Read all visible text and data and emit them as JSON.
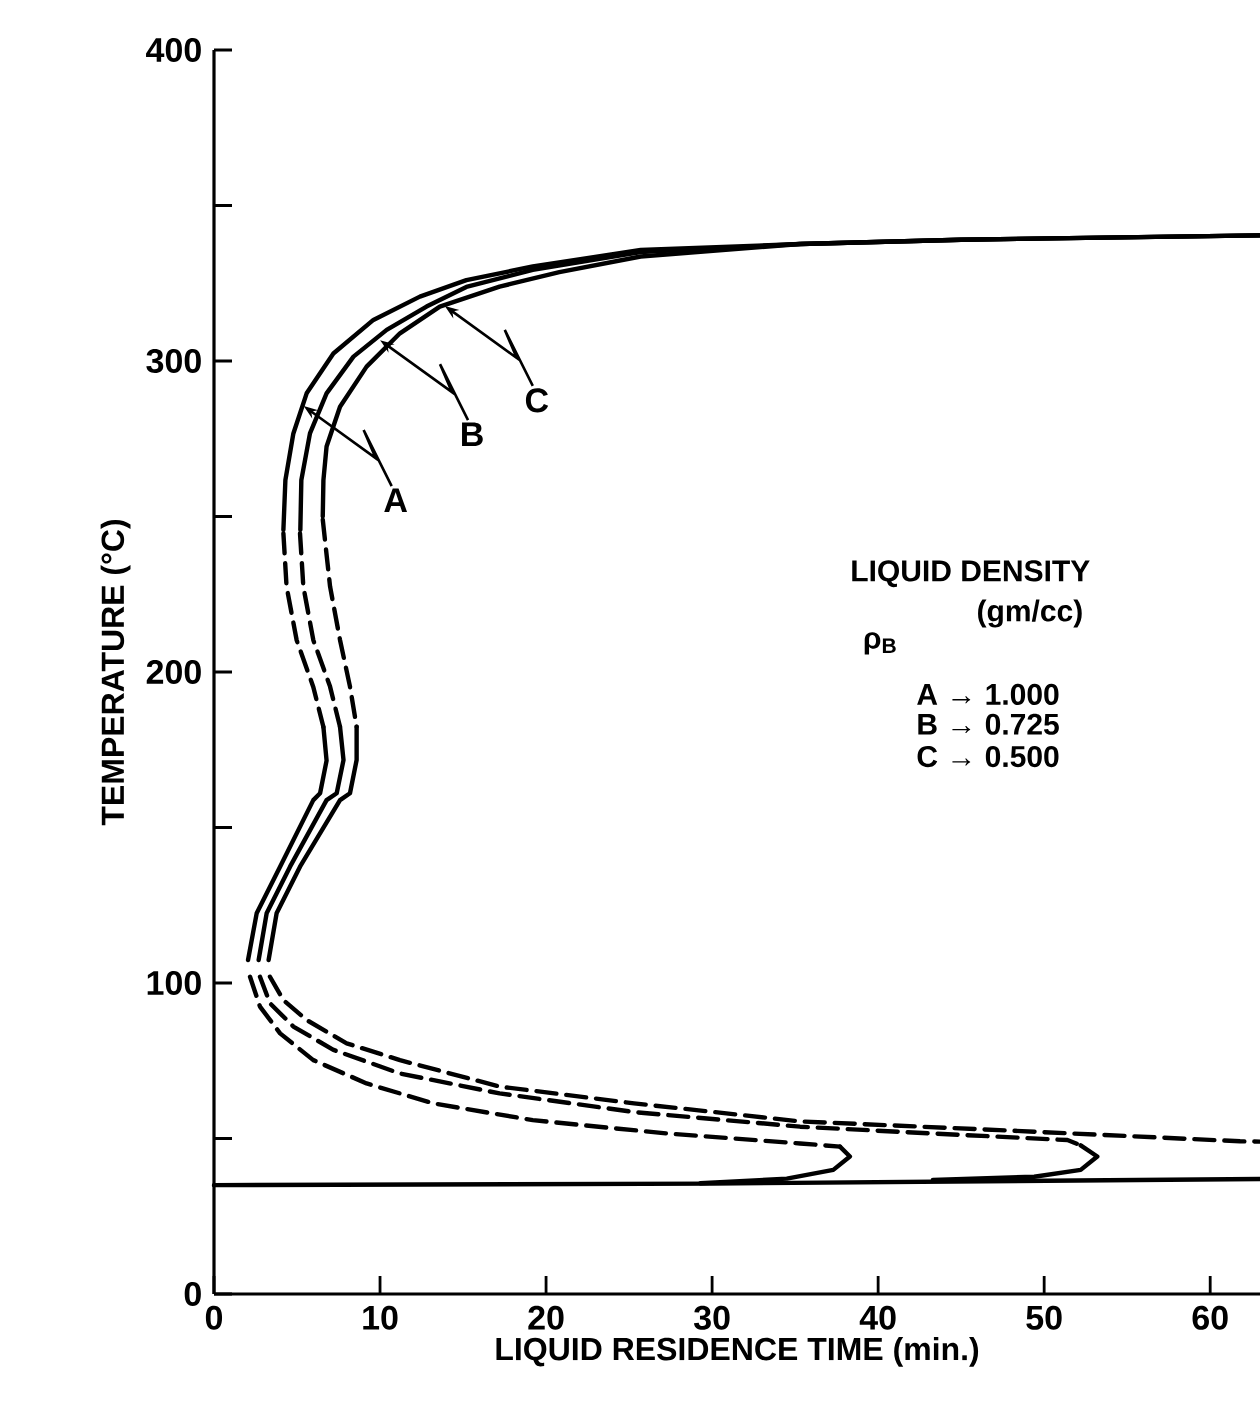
{
  "chart_data": {
    "type": "line",
    "xlabel": "LIQUID RESIDENCE TIME (min.)",
    "ylabel": "TEMPERATURE (°C)",
    "xlim": [
      0,
      63
    ],
    "ylim": [
      0,
      400
    ],
    "xticks": [
      0,
      10,
      20,
      30,
      40,
      50,
      60
    ],
    "yticks": [
      0,
      {
        "value": 50,
        "label": null
      },
      100,
      {
        "value": 150,
        "label": null
      },
      200,
      {
        "value": 250,
        "label": null
      },
      300,
      {
        "value": 350,
        "label": null
      },
      400
    ],
    "grid": false,
    "marker": "none",
    "series": [
      {
        "color": "#000000",
        "line_style": "solid",
        "x": [
          4.18,
          4.3,
          4.78,
          5.58,
          7.19,
          9.6,
          12.4,
          15.2,
          19.2,
          25.7,
          35.3,
          45,
          63
        ],
        "values": [
          245.7,
          261.7,
          276.7,
          289.6,
          302.4,
          313.2,
          320.7,
          326,
          330.4,
          335.7,
          337.6,
          339,
          340.4
        ]
      },
      {
        "color": "#000000",
        "line_style": "solid",
        "x": [
          5.2,
          5.26,
          5.78,
          6.78,
          8.4,
          10.4,
          12.8,
          15.2,
          19.2,
          25.7,
          35.3,
          45,
          63
        ],
        "values": [
          245.7,
          261.7,
          276.7,
          289.6,
          301.4,
          310,
          317.5,
          323.8,
          329.3,
          335,
          337.6,
          339,
          340.4
        ]
      },
      {
        "color": "#000000",
        "line_style": "solid",
        "x": [
          6.55,
          6.59,
          6.78,
          7.59,
          9.19,
          11.2,
          13.6,
          17.2,
          20.8,
          25.7,
          35.3,
          45,
          63
        ],
        "values": [
          250,
          261.7,
          272.5,
          285.3,
          298.2,
          308.9,
          317.5,
          323.9,
          328.6,
          333.6,
          337.6,
          339,
          340.4
        ]
      },
      {
        "color": "#000000",
        "line_style": "dashed",
        "x": [
          4.18,
          4.37,
          4.98,
          5.98,
          6.59
        ],
        "values": [
          244.6,
          227.5,
          210.2,
          195.2,
          182.3
        ]
      },
      {
        "color": "#000000",
        "line_style": "dashed",
        "x": [
          5.18,
          5.38,
          5.98,
          6.99,
          7.59
        ],
        "values": [
          244.6,
          227.5,
          210.3,
          195.3,
          182.4
        ]
      },
      {
        "color": "#000000",
        "line_style": "dashed",
        "x": [
          6.55,
          6.99,
          7.59,
          8.19,
          8.59
        ],
        "values": [
          249,
          227.5,
          210.3,
          195.3,
          182.4
        ]
      },
      {
        "color": "#000000",
        "line_style": "solid",
        "x": [
          6.59,
          6.78,
          6.39,
          5.98,
          3.98,
          2.57,
          2.05
        ],
        "values": [
          182.3,
          171.5,
          161,
          158.8,
          137.4,
          122.4,
          107.4
        ]
      },
      {
        "color": "#000000",
        "line_style": "solid",
        "x": [
          7.59,
          7.8,
          7.39,
          6.78,
          4.58,
          3.17,
          2.69
        ],
        "values": [
          182.4,
          171.7,
          161,
          158.8,
          137.4,
          122.4,
          107.4
        ]
      },
      {
        "color": "#000000",
        "line_style": "solid",
        "x": [
          8.59,
          8.59,
          8.19,
          7.59,
          5.18,
          3.77,
          3.29
        ],
        "values": [
          182.4,
          171.7,
          161,
          158.8,
          137.4,
          122.4,
          107.4
        ]
      },
      {
        "color": "#000000",
        "line_style": "dashed",
        "x": [
          2.17,
          2.77,
          3.98,
          5.98,
          9.19,
          13.2,
          19.2,
          27.3,
          35.3,
          37.7
        ],
        "values": [
          102,
          92.4,
          83.8,
          75.2,
          67.7,
          61.3,
          55.9,
          51.6,
          48.4,
          47.4
        ]
      },
      {
        "color": "#000000",
        "line_style": "dashed",
        "x": [
          2.77,
          3.37,
          4.78,
          7.19,
          11.2,
          17.2,
          25.3,
          35.3,
          43.3,
          51.4,
          52.2
        ],
        "values": [
          102,
          93.5,
          86,
          78.5,
          70.9,
          64.5,
          58.5,
          53.8,
          51.6,
          49.5,
          47.8
        ]
      },
      {
        "color": "#000000",
        "line_style": "dashed",
        "x": [
          3.37,
          4.18,
          5.58,
          7.99,
          11.2,
          17.2,
          25.3,
          35.3,
          47.3,
          61.8,
          63
        ],
        "values": [
          102,
          94.5,
          88.1,
          80.6,
          75.2,
          66.7,
          61.3,
          55.5,
          52.7,
          49.1,
          49
        ]
      },
      {
        "color": "#000000",
        "line_style": "solid",
        "x": [
          37.7,
          38.3,
          37.3,
          34.5,
          29.3
        ],
        "values": [
          47.4,
          44.2,
          39.9,
          37.1,
          35.6
        ]
      },
      {
        "color": "#000000",
        "line_style": "solid",
        "x": [
          52.2,
          53.2,
          52.2,
          49.4,
          43.3
        ],
        "values": [
          47.8,
          44.2,
          39.9,
          37.7,
          36.7
        ]
      },
      {
        "color": "#000000",
        "line_style": "solid",
        "x": [
          0,
          30,
          63
        ],
        "values": [
          35,
          35.5,
          37
        ]
      }
    ],
    "annotations": [
      {
        "text": "A",
        "x": 5.4,
        "y": 285.5
      },
      {
        "text": "B",
        "x": 10,
        "y": 306.7
      },
      {
        "text": "C",
        "x": 13.9,
        "y": 317.7
      },
      "LIQUID DENSITY",
      "(gm/cc)",
      "ρ$_{B}$",
      "A → 1.000",
      "B → 0.725",
      "C → 0.500"
    ]
  }
}
